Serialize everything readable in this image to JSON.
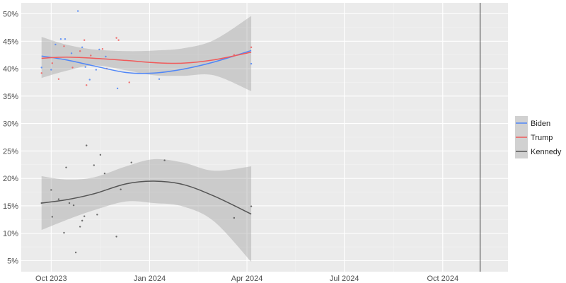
{
  "chart_data": {
    "type": "scatter",
    "title": "",
    "xlabel": "",
    "ylabel": "",
    "x_tick_labels": [
      "Oct 2023",
      "Jan 2024",
      "Apr 2024",
      "Jul 2024",
      "Oct 2024"
    ],
    "x_tick_dates": [
      "2023-10-01",
      "2024-01-01",
      "2024-04-01",
      "2024-07-01",
      "2024-10-01"
    ],
    "xlim": [
      "2023-09-03",
      "2024-12-01"
    ],
    "vline_date": "2024-11-05",
    "y_tick_labels": [
      "5%",
      "10%",
      "15%",
      "20%",
      "25%",
      "30%",
      "35%",
      "40%",
      "45%",
      "50%"
    ],
    "y_tick_values": [
      5,
      10,
      15,
      20,
      25,
      30,
      35,
      40,
      45,
      50
    ],
    "ylim": [
      3,
      52
    ],
    "grid": true,
    "legend_position": "right",
    "colors": {
      "panel_background": "#ebebeb",
      "grid_major": "#ffffff",
      "ribbon": "#999999",
      "vline": "#222222"
    },
    "series": [
      {
        "name": "Biden",
        "color": "#4f86f7",
        "smooth": [
          {
            "x": "2023-09-22",
            "y": 42.3
          },
          {
            "x": "2023-10-15",
            "y": 41.6
          },
          {
            "x": "2023-11-10",
            "y": 40.5
          },
          {
            "x": "2023-12-10",
            "y": 39.3
          },
          {
            "x": "2024-01-05",
            "y": 39.2
          },
          {
            "x": "2024-02-01",
            "y": 39.9
          },
          {
            "x": "2024-03-01",
            "y": 41.2
          },
          {
            "x": "2024-04-05",
            "y": 43.3
          }
        ],
        "ribbon_upper": [
          42.3,
          41.6,
          40.5,
          39.3,
          39.2,
          39.9,
          41.2,
          43.3
        ],
        "ribbon_lower": [
          42.3,
          41.6,
          40.5,
          39.3,
          39.2,
          39.9,
          41.2,
          43.3
        ],
        "points": [
          {
            "x": "2023-09-22",
            "y": 40.2
          },
          {
            "x": "2023-10-01",
            "y": 39.8
          },
          {
            "x": "2023-10-05",
            "y": 44.4
          },
          {
            "x": "2023-10-10",
            "y": 45.4
          },
          {
            "x": "2023-10-14",
            "y": 45.4
          },
          {
            "x": "2023-10-20",
            "y": 42.8
          },
          {
            "x": "2023-10-26",
            "y": 50.5
          },
          {
            "x": "2023-10-30",
            "y": 43.9
          },
          {
            "x": "2023-11-02",
            "y": 40.3
          },
          {
            "x": "2023-11-06",
            "y": 38.0
          },
          {
            "x": "2023-11-12",
            "y": 39.8
          },
          {
            "x": "2023-11-15",
            "y": 43.5
          },
          {
            "x": "2023-11-21",
            "y": 42.2
          },
          {
            "x": "2023-12-02",
            "y": 36.4
          },
          {
            "x": "2024-01-10",
            "y": 38.1
          },
          {
            "x": "2024-04-05",
            "y": 40.9
          }
        ]
      },
      {
        "name": "Trump",
        "color": "#f05a5a",
        "smooth": [
          {
            "x": "2023-09-22",
            "y": 41.9
          },
          {
            "x": "2023-10-15",
            "y": 42.1
          },
          {
            "x": "2023-11-10",
            "y": 41.9
          },
          {
            "x": "2023-12-10",
            "y": 41.5
          },
          {
            "x": "2024-01-05",
            "y": 41.1
          },
          {
            "x": "2024-02-01",
            "y": 41.0
          },
          {
            "x": "2024-03-01",
            "y": 41.6
          },
          {
            "x": "2024-04-05",
            "y": 43.0
          }
        ],
        "ribbon_upper": [
          45.8,
          44.4,
          43.5,
          43.2,
          43.3,
          43.7,
          45.2,
          49.6
        ],
        "ribbon_lower": [
          38.3,
          39.6,
          40.6,
          39.7,
          38.8,
          38.7,
          38.8,
          35.9
        ],
        "points": [
          {
            "x": "2023-09-22",
            "y": 39.2
          },
          {
            "x": "2023-10-02",
            "y": 41.0
          },
          {
            "x": "2023-10-08",
            "y": 38.1
          },
          {
            "x": "2023-10-13",
            "y": 44.1
          },
          {
            "x": "2023-10-21",
            "y": 40.2
          },
          {
            "x": "2023-10-28",
            "y": 43.2
          },
          {
            "x": "2023-11-01",
            "y": 45.2
          },
          {
            "x": "2023-11-03",
            "y": 37.0
          },
          {
            "x": "2023-11-07",
            "y": 42.4
          },
          {
            "x": "2023-11-18",
            "y": 43.6
          },
          {
            "x": "2023-11-22",
            "y": 40.0
          },
          {
            "x": "2023-12-01",
            "y": 45.6
          },
          {
            "x": "2023-12-03",
            "y": 45.2
          },
          {
            "x": "2023-12-13",
            "y": 37.5
          },
          {
            "x": "2024-03-20",
            "y": 42.5
          },
          {
            "x": "2024-04-05",
            "y": 43.9
          }
        ]
      },
      {
        "name": "Kennedy",
        "color": "#555555",
        "smooth": [
          {
            "x": "2023-09-22",
            "y": 15.5
          },
          {
            "x": "2023-10-15",
            "y": 16.1
          },
          {
            "x": "2023-11-10",
            "y": 17.2
          },
          {
            "x": "2023-12-10",
            "y": 19.0
          },
          {
            "x": "2024-01-05",
            "y": 19.5
          },
          {
            "x": "2024-02-01",
            "y": 18.9
          },
          {
            "x": "2024-03-01",
            "y": 16.8
          },
          {
            "x": "2024-04-05",
            "y": 13.5
          }
        ],
        "ribbon_upper": [
          20.4,
          19.8,
          20.2,
          22.2,
          23.5,
          22.9,
          21.4,
          22.2
        ],
        "ribbon_lower": [
          10.6,
          12.4,
          14.2,
          15.8,
          15.5,
          14.9,
          12.2,
          4.8
        ],
        "points": [
          {
            "x": "2023-09-22",
            "y": 15.5
          },
          {
            "x": "2023-10-01",
            "y": 17.9
          },
          {
            "x": "2023-10-02",
            "y": 13.0
          },
          {
            "x": "2023-10-08",
            "y": 16.2
          },
          {
            "x": "2023-10-13",
            "y": 10.1
          },
          {
            "x": "2023-10-15",
            "y": 22.0
          },
          {
            "x": "2023-10-18",
            "y": 15.5
          },
          {
            "x": "2023-10-22",
            "y": 15.1
          },
          {
            "x": "2023-10-24",
            "y": 6.5
          },
          {
            "x": "2023-10-28",
            "y": 11.2
          },
          {
            "x": "2023-10-30",
            "y": 12.3
          },
          {
            "x": "2023-11-01",
            "y": 13.1
          },
          {
            "x": "2023-11-03",
            "y": 26.0
          },
          {
            "x": "2023-11-10",
            "y": 22.4
          },
          {
            "x": "2023-11-13",
            "y": 13.4
          },
          {
            "x": "2023-11-16",
            "y": 24.3
          },
          {
            "x": "2023-11-20",
            "y": 20.9
          },
          {
            "x": "2023-12-01",
            "y": 9.4
          },
          {
            "x": "2023-12-05",
            "y": 18.0
          },
          {
            "x": "2023-12-15",
            "y": 22.9
          },
          {
            "x": "2024-01-15",
            "y": 23.3
          },
          {
            "x": "2024-03-20",
            "y": 12.8
          },
          {
            "x": "2024-04-05",
            "y": 14.9
          }
        ]
      }
    ]
  }
}
